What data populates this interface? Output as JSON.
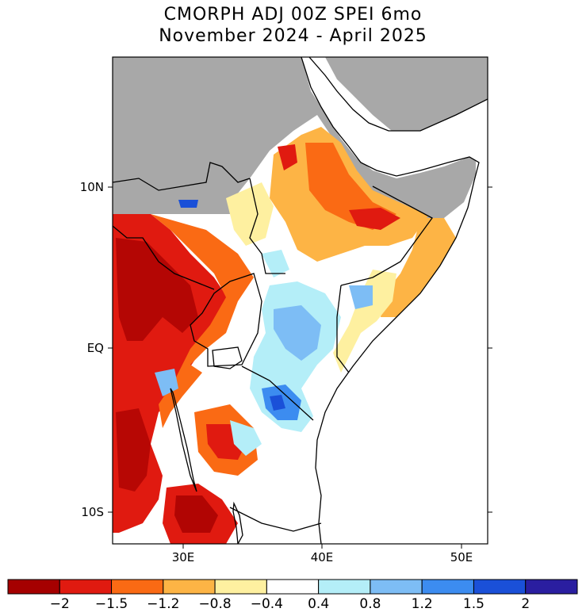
{
  "title": {
    "line1": "CMORPH ADJ 00Z SPEI 6mo",
    "line2": "November 2024 - April 2025"
  },
  "map": {
    "lat_labels": [
      "10N",
      "EQ",
      "10S"
    ],
    "lon_labels": [
      "30E",
      "40E",
      "50E"
    ]
  },
  "colorbar": {
    "colors": [
      "#a50000",
      "#e01a10",
      "#fa6a14",
      "#fdb445",
      "#fef0a0",
      "#ffffff",
      "#b4eef8",
      "#7dbdf5",
      "#3c8cf0",
      "#1a50d8",
      "#2a1ea0"
    ],
    "tick_labels": [
      "-2",
      "-1.5",
      "-1.2",
      "-0.8",
      "-0.4",
      "0.4",
      "0.8",
      "1.2",
      "1.5",
      "2"
    ]
  },
  "legend_colors": {
    "no_data": "#a8a8a8",
    "ocean": "#ffffff"
  }
}
